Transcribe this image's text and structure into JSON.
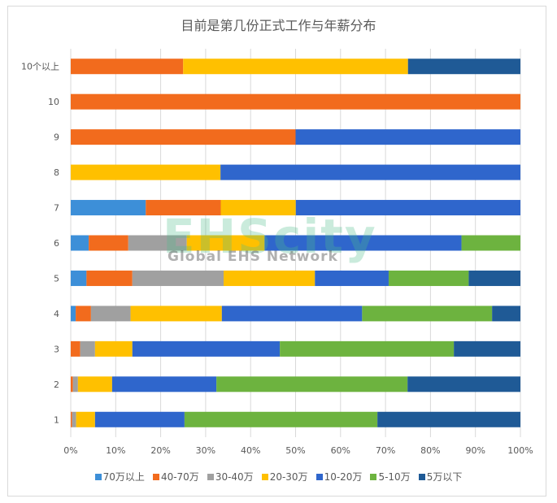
{
  "chart_data": {
    "type": "bar",
    "orientation": "horizontal",
    "stacking": "percent",
    "title": "目前是第几份正式工作与年薪分布",
    "xlabel": "",
    "ylabel": "",
    "xlim": [
      0,
      100
    ],
    "x_ticks": [
      "0%",
      "10%",
      "20%",
      "30%",
      "40%",
      "50%",
      "60%",
      "70%",
      "80%",
      "90%",
      "100%"
    ],
    "grid": true,
    "legend_position": "bottom",
    "categories": [
      "1",
      "2",
      "3",
      "4",
      "5",
      "6",
      "7",
      "8",
      "9",
      "10",
      "10个以上"
    ],
    "series": [
      {
        "name": "70万以上",
        "color": "#3d8fd8",
        "values": [
          0,
          0,
          0,
          1.1,
          3.5,
          4.0,
          16.7,
          0,
          0,
          0,
          0
        ]
      },
      {
        "name": "40-70万",
        "color": "#f26b1d",
        "values": [
          0.3,
          0.5,
          2.1,
          3.4,
          10.2,
          8.8,
          16.7,
          0,
          50,
          100,
          25
        ]
      },
      {
        "name": "30-40万",
        "color": "#a0a0a0",
        "values": [
          0.9,
          1.1,
          3.3,
          8.8,
          20.3,
          13.0,
          0,
          0,
          0,
          0,
          0
        ]
      },
      {
        "name": "20-30万",
        "color": "#ffc000",
        "values": [
          4.2,
          7.6,
          8.3,
          20.3,
          20.3,
          17.3,
          16.7,
          33.3,
          0,
          0,
          50
        ]
      },
      {
        "name": "10-20万",
        "color": "#2f66cc",
        "values": [
          19.9,
          23.2,
          32.8,
          31.2,
          16.4,
          43.8,
          50,
          66.7,
          50,
          0,
          0
        ]
      },
      {
        "name": "5-10万",
        "color": "#6db33f",
        "values": [
          42.9,
          42.5,
          38.7,
          28.9,
          17.8,
          13.1,
          0,
          0,
          0,
          0,
          0
        ]
      },
      {
        "name": "5万以下",
        "color": "#1f5a96",
        "values": [
          31.8,
          25.1,
          14.8,
          6.3,
          11.5,
          0,
          0,
          0,
          0,
          0,
          25
        ]
      }
    ]
  },
  "watermark": {
    "line1": "EHScity",
    "line2": "Global EHS Network"
  }
}
